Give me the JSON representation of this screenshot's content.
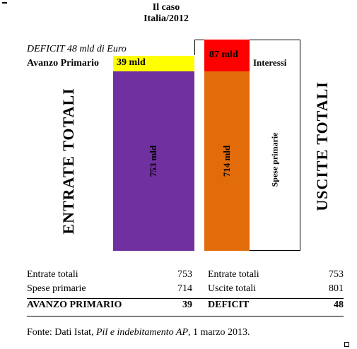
{
  "title": {
    "line1": "Il caso",
    "line2": "Italia/2012"
  },
  "deficit_note": "DEFICIT 48 mld di Euro",
  "avanzo_label": "Avanzo Primario",
  "interessi_label": "Interessi",
  "bars": {
    "avanzo_value": "39 mld",
    "entrate_value": "753 mld",
    "interessi_value": "87 mld",
    "spese_value": "714 mld",
    "spese_label": "Spese primarie"
  },
  "side_labels": {
    "left": "ENTRATE TOTALI",
    "right": "USCITE TOTALI"
  },
  "table": {
    "rows": [
      {
        "l_label": "Entrate totali",
        "l_value": "753",
        "r_label": "Entrate totali",
        "r_value": "753"
      },
      {
        "l_label": "Spese primarie",
        "l_value": "714",
        "r_label": "Uscite totali",
        "r_value": "801"
      }
    ],
    "total": {
      "l_label": "AVANZO PRIMARIO",
      "l_value": "39",
      "r_label": "DEFICIT",
      "r_value": "48"
    }
  },
  "source": {
    "prefix": "Fonte: Dati Istat, ",
    "italic": "Pil e indebitamento AP",
    "suffix": ", 1 marzo 2013."
  },
  "colors": {
    "avanzo": "#ffff00",
    "entrate": "#7030a0",
    "interessi": "#ff0000",
    "spese": "#e36c0a",
    "uscite_box": "#ffffff"
  }
}
